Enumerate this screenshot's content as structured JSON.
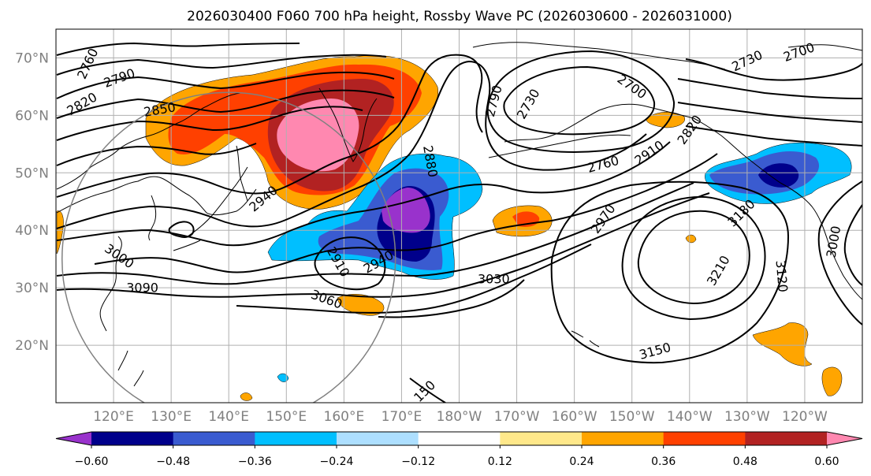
{
  "title": "2026030400 F060 700 hPa height, Rossby Wave PC (2026030600 - 2026031000)",
  "colors": {
    "contour": "#000000",
    "grid": "#b0b0b0",
    "coast": "#000000",
    "circle": "#808080"
  },
  "map": {
    "lon_range": [
      110,
      250
    ],
    "lat_range": [
      10,
      75
    ],
    "lon_ticks": [
      {
        "lon": 120,
        "label": "120°E"
      },
      {
        "lon": 130,
        "label": "130°E"
      },
      {
        "lon": 140,
        "label": "140°E"
      },
      {
        "lon": 150,
        "label": "150°E"
      },
      {
        "lon": 160,
        "label": "160°E"
      },
      {
        "lon": 170,
        "label": "170°E"
      },
      {
        "lon": 180,
        "label": "180°W"
      },
      {
        "lon": 190,
        "label": "170°W"
      },
      {
        "lon": 200,
        "label": "160°W"
      },
      {
        "lon": 210,
        "label": "150°W"
      },
      {
        "lon": 220,
        "label": "140°W"
      },
      {
        "lon": 230,
        "label": "130°W"
      },
      {
        "lon": 240,
        "label": "120°W"
      }
    ],
    "lat_ticks": [
      {
        "lat": 20,
        "label": "20°N"
      },
      {
        "lat": 30,
        "label": "30°N"
      },
      {
        "lat": 40,
        "label": "40°N"
      },
      {
        "lat": 50,
        "label": "50°N"
      },
      {
        "lat": 60,
        "label": "60°N"
      },
      {
        "lat": 70,
        "label": "70°N"
      }
    ],
    "circle": {
      "center_lon": 140,
      "center_lat": 35,
      "radius_deg": 29
    },
    "contour_labels": [
      {
        "text": "2760",
        "lon": 115.5,
        "lat": 69,
        "rot": -65
      },
      {
        "text": "2790",
        "lon": 121,
        "lat": 66.5,
        "rot": -20
      },
      {
        "text": "2820",
        "lon": 114.5,
        "lat": 62,
        "rot": -30
      },
      {
        "text": "2850",
        "lon": 128,
        "lat": 61,
        "rot": -10
      },
      {
        "text": "2940",
        "lon": 146,
        "lat": 45.5,
        "rot": -40
      },
      {
        "text": "3000",
        "lon": 121,
        "lat": 35.5,
        "rot": 35
      },
      {
        "text": "3090",
        "lon": 125,
        "lat": 30,
        "rot": 0
      },
      {
        "text": "3060",
        "lon": 157,
        "lat": 28,
        "rot": 20
      },
      {
        "text": "2910",
        "lon": 159,
        "lat": 34.5,
        "rot": 60
      },
      {
        "text": "2940",
        "lon": 166,
        "lat": 34.5,
        "rot": -30
      },
      {
        "text": "2880",
        "lon": 175,
        "lat": 52,
        "rot": 80
      },
      {
        "text": "2790",
        "lon": 186,
        "lat": 62.5,
        "rot": -75
      },
      {
        "text": "2730",
        "lon": 192,
        "lat": 62,
        "rot": -60
      },
      {
        "text": "2700",
        "lon": 210,
        "lat": 65,
        "rot": 35
      },
      {
        "text": "2760",
        "lon": 205,
        "lat": 51.5,
        "rot": -15
      },
      {
        "text": "2910",
        "lon": 213,
        "lat": 53.5,
        "rot": -35
      },
      {
        "text": "2970",
        "lon": 205,
        "lat": 42,
        "rot": -55
      },
      {
        "text": "2820",
        "lon": 220,
        "lat": 57.5,
        "rot": -55
      },
      {
        "text": "2730",
        "lon": 230,
        "lat": 69.5,
        "rot": -25
      },
      {
        "text": "2700",
        "lon": 239,
        "lat": 71,
        "rot": -20
      },
      {
        "text": "3180",
        "lon": 229,
        "lat": 43,
        "rot": -45
      },
      {
        "text": "3210",
        "lon": 225,
        "lat": 33,
        "rot": -60
      },
      {
        "text": "3120",
        "lon": 236,
        "lat": 32,
        "rot": 85
      },
      {
        "text": "3000",
        "lon": 245,
        "lat": 38,
        "rot": -80
      },
      {
        "text": "3030",
        "lon": 186,
        "lat": 31.5,
        "rot": 0
      },
      {
        "text": "3150",
        "lon": 214,
        "lat": 19,
        "rot": -15
      },
      {
        "text": "150",
        "lon": 174,
        "lat": 12,
        "rot": -45
      }
    ]
  },
  "colorbar": {
    "extend": "both",
    "levels": [
      -0.72,
      -0.6,
      -0.48,
      -0.36,
      -0.24,
      -0.12,
      0.12,
      0.24,
      0.36,
      0.48,
      0.6,
      0.72
    ],
    "colors": [
      "#9932CC",
      "#00008B",
      "#3A5BD0",
      "#00BFFF",
      "#ADDFFF",
      "#FFFFFF",
      "#FFE88A",
      "#FFA500",
      "#FF4000",
      "#B22222",
      "#FF88B0"
    ],
    "tick_labels": [
      {
        "value": -0.6,
        "label": "−0.60"
      },
      {
        "value": -0.48,
        "label": "−0.48"
      },
      {
        "value": -0.36,
        "label": "−0.36"
      },
      {
        "value": -0.24,
        "label": "−0.24"
      },
      {
        "value": -0.12,
        "label": "−0.12"
      },
      {
        "value": 0.12,
        "label": "0.12"
      },
      {
        "value": 0.24,
        "label": "0.24"
      },
      {
        "value": 0.36,
        "label": "0.36"
      },
      {
        "value": 0.48,
        "label": "0.48"
      },
      {
        "value": 0.6,
        "label": "0.60"
      }
    ]
  }
}
